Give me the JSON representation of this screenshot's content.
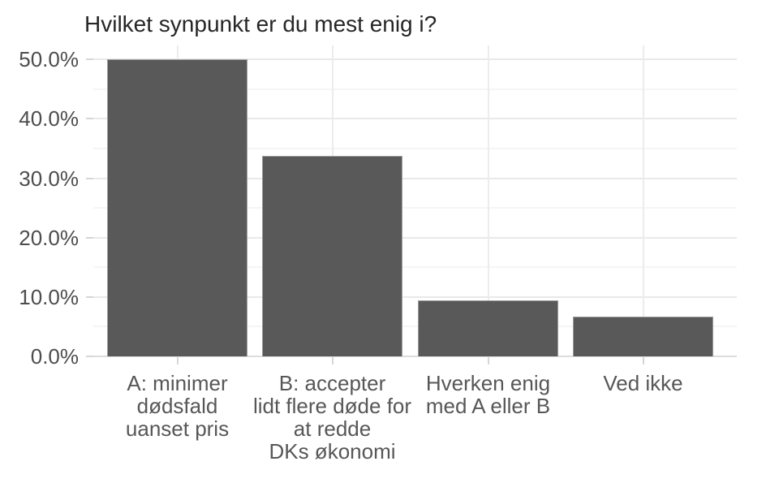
{
  "chart_data": {
    "type": "bar",
    "title": "Hvilket synpunkt er du mest enig i?",
    "categories": [
      "A: minimer dødsfald uanset pris",
      "B: accepter lidt flere døde for at redde DKs økonomi",
      "Hverken enig med A eller B",
      "Ved ikke"
    ],
    "categories_wrapped": [
      "A: minimer\ndødsfald\nuanset pris",
      "B: accepter\nlidt flere døde for\nat redde\nDKs økonomi",
      "Hverken enig\nmed A eller B",
      "Ved ikke"
    ],
    "values": [
      50.0,
      33.8,
      9.5,
      6.7
    ],
    "unit": "%",
    "xlabel": "",
    "ylabel": "",
    "ylim": [
      0,
      52.4
    ],
    "y_major_ticks": [
      0,
      10,
      20,
      30,
      40,
      50
    ],
    "y_minor_ticks": [
      5,
      15,
      25,
      35,
      45
    ],
    "y_tick_labels": [
      "0.0%",
      "10.0%",
      "20.0%",
      "30.0%",
      "40.0%",
      "50.0%"
    ],
    "grid": "horizontal major+minor, vertical major at category centers",
    "legend": "none",
    "colors": {
      "bar_fill": "#595959",
      "bar_border": "#9e9e9e",
      "grid_major": "#e9e9e9",
      "grid_minor": "#f5f5f5",
      "baseline": "#dcdcdc",
      "tick": "#d6d6d6",
      "axis_text": "#4d4d4d",
      "title_text": "#262626",
      "background": "#ffffff"
    }
  }
}
